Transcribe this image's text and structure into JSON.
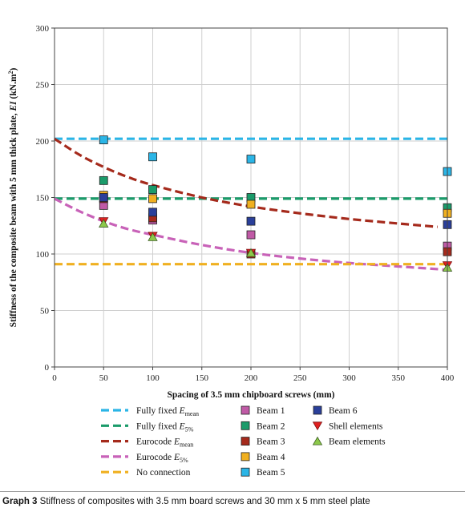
{
  "chart_data": {
    "type": "scatter",
    "xlabel": "Spacing of 3.5 mm chipboard screws (mm)",
    "ylabel_pre": "Stiffness of the composite beam with 5 mm thick plate, ",
    "ylabel_var": "EI",
    "ylabel_unit": " (kN.m",
    "ylabel_sup": "2",
    "ylabel_close": ")",
    "xlim": [
      0,
      400
    ],
    "ylim": [
      0,
      300
    ],
    "xticks": [
      "0",
      "50",
      "100",
      "150",
      "200",
      "250",
      "300",
      "350",
      "400"
    ],
    "yticks": [
      "0",
      "50",
      "100",
      "150",
      "200",
      "250",
      "300"
    ],
    "grid": true,
    "reference_lines": [
      {
        "label": "Fully fixed E",
        "sub": "mean",
        "color": "#2bb5e6",
        "style": "dashed",
        "x": [
          0,
          400
        ],
        "y": [
          202,
          202
        ]
      },
      {
        "label": "Fully fixed E",
        "sub": "5%",
        "color": "#1a9b6a",
        "style": "dashed",
        "x": [
          0,
          400
        ],
        "y": [
          149,
          149
        ]
      },
      {
        "label": "Eurocode E",
        "sub": "mean",
        "color": "#a52a1c",
        "style": "dashed",
        "x": [
          0,
          25,
          50,
          75,
          100,
          150,
          200,
          250,
          300,
          350,
          390
        ],
        "y": [
          202,
          188,
          177,
          168,
          161,
          150,
          142,
          136,
          131,
          127,
          124
        ]
      },
      {
        "label": "Eurocode E",
        "sub": "5%",
        "color": "#c862b8",
        "style": "dashed",
        "x": [
          0,
          25,
          50,
          75,
          100,
          150,
          200,
          250,
          300,
          350,
          400
        ],
        "y": [
          149,
          138,
          129,
          122,
          117,
          108,
          101,
          96,
          92,
          89,
          86
        ]
      },
      {
        "label": "No connection",
        "sub": "",
        "color": "#f0b020",
        "style": "dashed",
        "x": [
          0,
          400
        ],
        "y": [
          91,
          91
        ]
      }
    ],
    "series": [
      {
        "name": "Beam 1",
        "marker": "square",
        "color": "#c05aa6",
        "x": [
          50,
          100,
          200,
          400
        ],
        "y": [
          143,
          130,
          117,
          107
        ]
      },
      {
        "name": "Beam 2",
        "marker": "square",
        "color": "#1a9b6a",
        "x": [
          50,
          100,
          200,
          400
        ],
        "y": [
          165,
          157,
          150,
          141
        ]
      },
      {
        "name": "Beam 3",
        "marker": "square",
        "color": "#a52a1c",
        "x": [
          50,
          100,
          200,
          400
        ],
        "y": [
          149,
          132,
          100,
          102
        ]
      },
      {
        "name": "Beam 4",
        "marker": "square",
        "color": "#f0b020",
        "x": [
          50,
          100,
          200,
          400
        ],
        "y": [
          152,
          149,
          144,
          136
        ]
      },
      {
        "name": "Beam 5",
        "marker": "square",
        "color": "#2bb5e6",
        "x": [
          50,
          100,
          200,
          400
        ],
        "y": [
          201,
          186,
          184,
          173
        ]
      },
      {
        "name": "Beam 6",
        "marker": "square",
        "color": "#2a3f9a",
        "x": [
          50,
          100,
          200,
          400
        ],
        "y": [
          150,
          137,
          129,
          126
        ]
      },
      {
        "name": "Shell elements",
        "marker": "triangle-down",
        "color": "#e02020",
        "x": [
          50,
          100,
          200,
          400
        ],
        "y": [
          129,
          116,
          101,
          90
        ]
      },
      {
        "name": "Beam elements",
        "marker": "triangle-up",
        "color": "#8cc84a",
        "x": [
          50,
          100,
          200,
          400
        ],
        "y": [
          127,
          115,
          101,
          88
        ]
      }
    ],
    "legend_position": "bottom"
  },
  "caption": {
    "label": "Graph 3",
    "text": " Stiffness of composites with 3.5 mm board screws and 30 mm x 5 mm steel plate"
  }
}
